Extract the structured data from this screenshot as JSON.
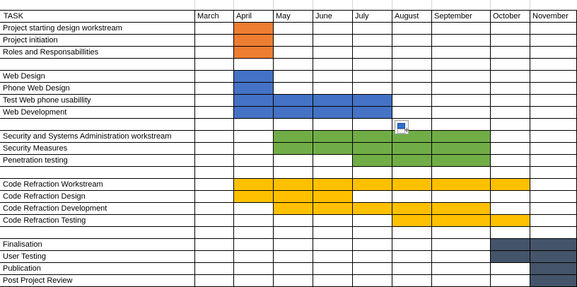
{
  "sheet": {
    "task_header": "TASK",
    "months": [
      "March",
      "April",
      "May",
      "June",
      "July",
      "August",
      "September",
      "October",
      "November"
    ],
    "rows": [
      "Project starting design workstream",
      "Project initiation",
      "Roles and Responsabillities",
      "",
      "Web Design",
      "Phone Web Design",
      "Test Web phone usabillity",
      "Web Development",
      "",
      "Security and Systems Administration workstream",
      "Security Measures",
      "Penetration testing",
      "",
      "Code Refraction Workstream",
      "Code Refraction Design",
      "Code Refraction Development",
      "Code Refraction Testing",
      "",
      "Finalisation",
      "User Testing",
      "Publication",
      "Post Project Review"
    ]
  },
  "colors": {
    "orange": "#ed7d31",
    "blue": "#4472c4",
    "green": "#70ad47",
    "gold": "#ffc000",
    "slate": "#44546a"
  },
  "fills": [
    {
      "row": 0,
      "from": 1,
      "to": 1,
      "color": "orange"
    },
    {
      "row": 1,
      "from": 1,
      "to": 1,
      "color": "orange"
    },
    {
      "row": 2,
      "from": 1,
      "to": 1,
      "color": "orange"
    },
    {
      "row": 4,
      "from": 1,
      "to": 1,
      "color": "blue"
    },
    {
      "row": 5,
      "from": 1,
      "to": 1,
      "color": "blue"
    },
    {
      "row": 6,
      "from": 1,
      "to": 4,
      "color": "blue"
    },
    {
      "row": 7,
      "from": 1,
      "to": 4,
      "color": "blue"
    },
    {
      "row": 9,
      "from": 2,
      "to": 6,
      "color": "green"
    },
    {
      "row": 10,
      "from": 2,
      "to": 6,
      "color": "green"
    },
    {
      "row": 11,
      "from": 4,
      "to": 6,
      "color": "green"
    },
    {
      "row": 13,
      "from": 1,
      "to": 7,
      "color": "gold"
    },
    {
      "row": 14,
      "from": 1,
      "to": 1,
      "color": "gold"
    },
    {
      "row": 14,
      "from": 2,
      "to": 3,
      "color": "gold"
    },
    {
      "row": 15,
      "from": 2,
      "to": 3,
      "color": "gold"
    },
    {
      "row": 15,
      "from": 4,
      "to": 6,
      "color": "gold"
    },
    {
      "row": 16,
      "from": 5,
      "to": 7,
      "color": "gold"
    },
    {
      "row": 18,
      "from": 7,
      "to": 8,
      "color": "slate"
    },
    {
      "row": 19,
      "from": 7,
      "to": 7,
      "color": "slate"
    },
    {
      "row": 19,
      "from": 8,
      "to": 8,
      "color": "slate"
    },
    {
      "row": 20,
      "from": 8,
      "to": 8,
      "color": "slate"
    },
    {
      "row": 21,
      "from": 8,
      "to": 8,
      "color": "slate"
    }
  ],
  "paste_options_icon": "paste-options-icon"
}
